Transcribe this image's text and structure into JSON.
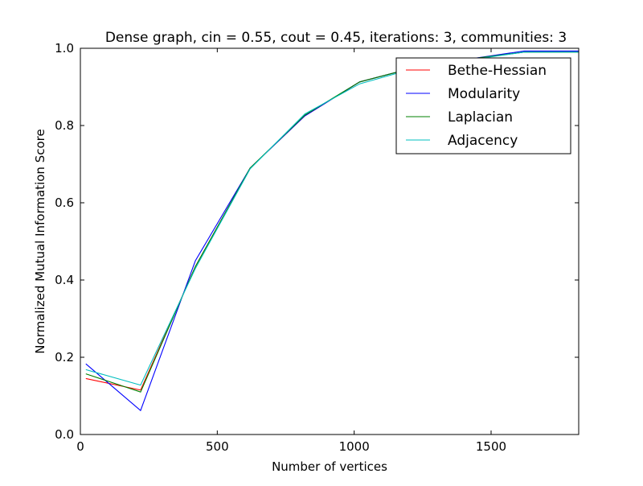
{
  "chart_data": {
    "type": "line",
    "title": "Dense graph, cin = 0.55, cout = 0.45, iterations: 3, communities: 3",
    "xlabel": "Number of vertices",
    "ylabel": "Normalized Mutual Information Score",
    "xlim": [
      0,
      1820
    ],
    "ylim": [
      0.0,
      1.0
    ],
    "xticks": [
      0,
      500,
      1000,
      1500
    ],
    "xtick_labels": [
      "0",
      "500",
      "1000",
      "1500"
    ],
    "yticks": [
      0.0,
      0.2,
      0.4,
      0.6,
      0.8,
      1.0
    ],
    "ytick_labels": [
      "0.0",
      "0.2",
      "0.4",
      "0.6",
      "0.8",
      "1.0"
    ],
    "grid": false,
    "legend_position": "top-right",
    "x": [
      20,
      220,
      420,
      620,
      820,
      1020,
      1220,
      1420,
      1620,
      1820
    ],
    "series": [
      {
        "name": "Bethe-Hessian",
        "color": "#ff0000",
        "values": [
          0.145,
          0.115,
          0.435,
          0.69,
          0.825,
          0.913,
          0.95,
          0.972,
          0.99,
          0.99
        ]
      },
      {
        "name": "Modularity",
        "color": "#0000ff",
        "values": [
          0.183,
          0.062,
          0.45,
          0.69,
          0.825,
          0.913,
          0.95,
          0.972,
          0.993,
          0.993
        ]
      },
      {
        "name": "Laplacian",
        "color": "#008000",
        "values": [
          0.157,
          0.11,
          0.435,
          0.69,
          0.827,
          0.913,
          0.95,
          0.972,
          0.99,
          0.99
        ]
      },
      {
        "name": "Adjacency",
        "color": "#00bfbf",
        "values": [
          0.168,
          0.128,
          0.43,
          0.688,
          0.83,
          0.908,
          0.948,
          0.97,
          0.99,
          0.99
        ]
      }
    ]
  }
}
